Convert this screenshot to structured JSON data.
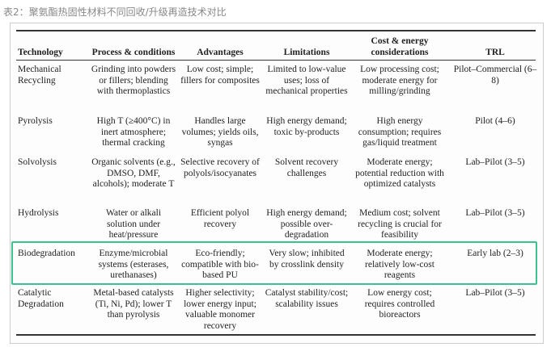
{
  "caption": "表2：聚氨酯热固性材料不同回收/升级再造技术对比",
  "table": {
    "headers": [
      "Technology",
      "Process & conditions",
      "Advantages",
      "Limitations",
      "Cost & energy considerations",
      "TRL"
    ],
    "rows": [
      [
        "Mechanical Recycling",
        "Grinding into powders or fillers; blending with thermoplastics",
        "Low cost; simple; fillers for composites",
        "Limited to low-value uses; loss of mechanical properties",
        "Low processing cost; moderate energy for milling/grinding",
        "Pilot–Commercial (6–8)"
      ],
      [
        "Pyrolysis",
        "High T (≥400°C) in inert atmosphere; thermal cracking",
        "Handles large volumes; yields oils, syngas",
        "High energy demand; toxic by-products",
        "High energy consumption; requires gas/liquid treatment",
        "Pilot (4–6)"
      ],
      [
        "Solvolysis",
        "Organic solvents (e.g., DMSO, DMF, alcohols); moderate T",
        "Selective recovery of polyols/isocyanates",
        "Solvent recovery challenges",
        "Moderate energy; potential reduction with optimized catalysts",
        "Lab–Pilot (3–5)"
      ],
      [
        "Hydrolysis",
        "Water or alkali solution under heat/pressure",
        "Efficient polyol recovery",
        "High energy demand; possible over-degradation",
        "Medium cost; solvent recycling is crucial for feasibility",
        "Lab–Pilot (3–5)"
      ],
      [
        "Biodegradation",
        "Enzyme/microbial systems (esterases, urethanases)",
        "Eco-friendly; compatible with bio-based PU",
        "Very slow; inhibited by crosslink density",
        "Moderate energy; relatively low-cost reagents",
        "Early lab (2–3)"
      ],
      [
        "Catalytic Degradation",
        "Metal-based catalysts (Ti, Ni, Pd); lower T than pyrolysis",
        "Higher selectivity; lower energy input; valuable monomer recovery",
        "Catalyst stability/cost; scalability issues",
        "Low energy cost; requires controlled bioreactors",
        "Lab–Pilot (3–5)"
      ]
    ]
  }
}
